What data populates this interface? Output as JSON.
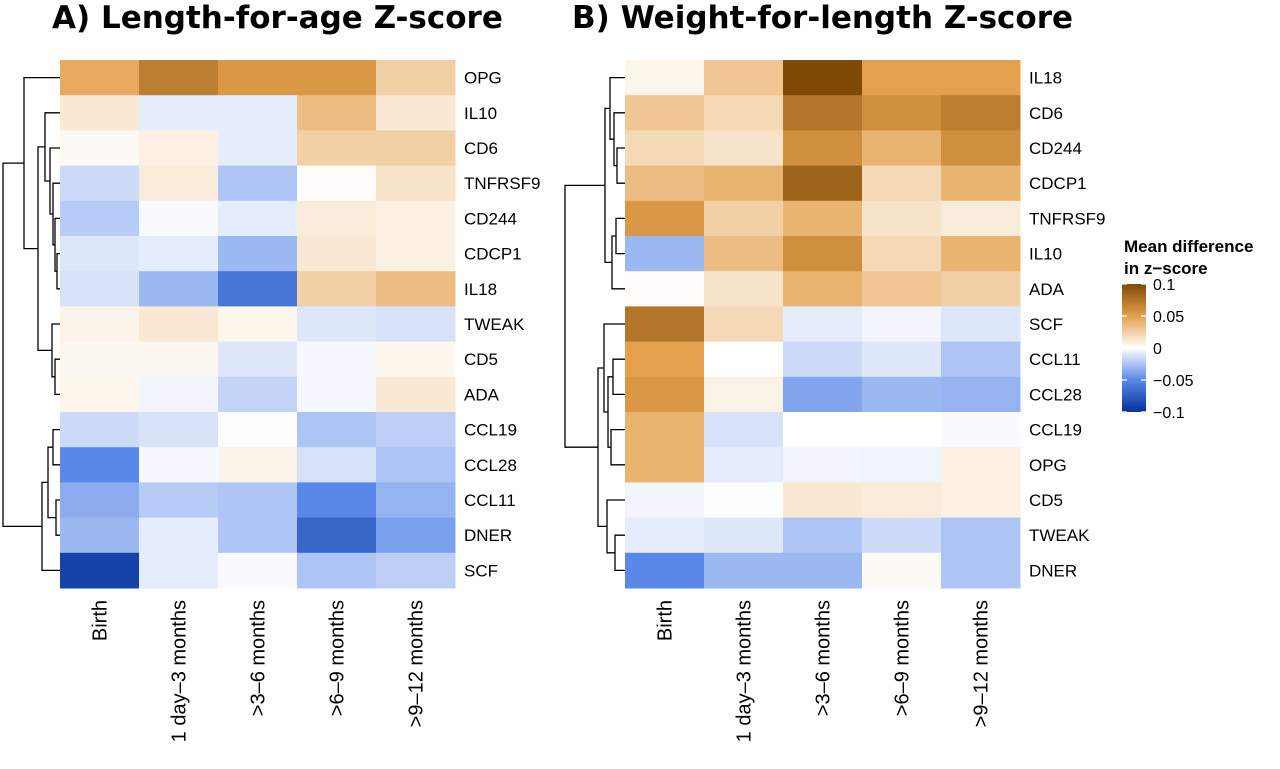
{
  "chart_data": [
    {
      "type": "heatmap",
      "title": "A) Length-for-age Z-score",
      "rows": [
        "OPG",
        "IL10",
        "CD6",
        "TNFRSF9",
        "CD244",
        "CDCP1",
        "IL18",
        "TWEAK",
        "CD5",
        "ADA",
        "CCL19",
        "CCL28",
        "CCL11",
        "DNER",
        "SCF"
      ],
      "columns": [
        "Birth",
        "1 day–3 months",
        ">3–6 months",
        ">6–9 months",
        ">9–12 months"
      ],
      "values": [
        [
          0.045,
          0.07,
          0.055,
          0.055,
          0.025
        ],
        [
          0.012,
          -0.008,
          -0.008,
          0.035,
          0.012
        ],
        [
          0.003,
          0.008,
          -0.008,
          0.025,
          0.025
        ],
        [
          -0.015,
          0.01,
          -0.025,
          0.001,
          0.015
        ],
        [
          -0.022,
          -0.002,
          -0.008,
          0.01,
          0.008
        ],
        [
          -0.01,
          -0.008,
          -0.03,
          0.012,
          0.008
        ],
        [
          -0.012,
          -0.03,
          -0.06,
          0.025,
          0.035
        ],
        [
          0.006,
          0.012,
          0.005,
          -0.01,
          -0.012
        ],
        [
          0.004,
          0.004,
          -0.01,
          -0.003,
          0.005
        ],
        [
          0.005,
          -0.004,
          -0.018,
          -0.003,
          0.012
        ],
        [
          -0.015,
          -0.012,
          -0.001,
          -0.025,
          -0.02
        ],
        [
          -0.05,
          -0.003,
          0.006,
          -0.012,
          -0.025
        ],
        [
          -0.035,
          -0.022,
          -0.025,
          -0.05,
          -0.032
        ],
        [
          -0.03,
          -0.008,
          -0.025,
          -0.07,
          -0.04
        ],
        [
          -0.09,
          -0.008,
          -0.002,
          -0.025,
          -0.02
        ]
      ]
    },
    {
      "type": "heatmap",
      "title": "B) Weight-for-length Z-score",
      "rows": [
        "IL18",
        "CD6",
        "CD244",
        "CDCP1",
        "TNFRSF9",
        "IL10",
        "ADA",
        "SCF",
        "CCL11",
        "CCL28",
        "CCL19",
        "OPG",
        "CD5",
        "TWEAK",
        "DNER"
      ],
      "columns": [
        "Birth",
        "1 day–3 months",
        ">3–6 months",
        ">6–9 months",
        ">9–12 months"
      ],
      "values": [
        [
          0.005,
          0.03,
          0.11,
          0.05,
          0.05
        ],
        [
          0.03,
          0.02,
          0.075,
          0.06,
          0.07
        ],
        [
          0.02,
          0.015,
          0.06,
          0.04,
          0.06
        ],
        [
          0.035,
          0.04,
          0.085,
          0.02,
          0.04
        ],
        [
          0.055,
          0.025,
          0.04,
          0.015,
          0.01
        ],
        [
          -0.03,
          0.035,
          0.06,
          0.02,
          0.04
        ],
        [
          0.002,
          0.015,
          0.04,
          0.03,
          0.025
        ],
        [
          0.075,
          0.02,
          -0.008,
          -0.004,
          -0.01
        ],
        [
          0.05,
          0.0,
          -0.015,
          -0.01,
          -0.025
        ],
        [
          0.055,
          0.007,
          -0.038,
          -0.03,
          -0.032
        ],
        [
          0.04,
          -0.012,
          0.0,
          0.0,
          -0.002
        ],
        [
          0.04,
          -0.008,
          -0.004,
          -0.005,
          0.008
        ],
        [
          -0.004,
          -0.001,
          0.012,
          0.01,
          0.008
        ],
        [
          -0.008,
          -0.01,
          -0.025,
          -0.015,
          -0.025
        ],
        [
          -0.05,
          -0.03,
          -0.03,
          0.003,
          -0.025
        ]
      ]
    }
  ],
  "legend": {
    "title_line1": "Mean difference",
    "title_line2": "in z−score",
    "ticks": [
      {
        "value": 0.1,
        "label": "0.1"
      },
      {
        "value": 0.05,
        "label": "0.05"
      },
      {
        "value": 0,
        "label": "0"
      },
      {
        "value": -0.05,
        "label": "−0.05"
      },
      {
        "value": -0.1,
        "label": "−0.1"
      }
    ],
    "range": [
      -0.1,
      0.1
    ],
    "colors": {
      "low": "#053299",
      "mid": "#ffffff",
      "high": "#7f4a06"
    }
  }
}
